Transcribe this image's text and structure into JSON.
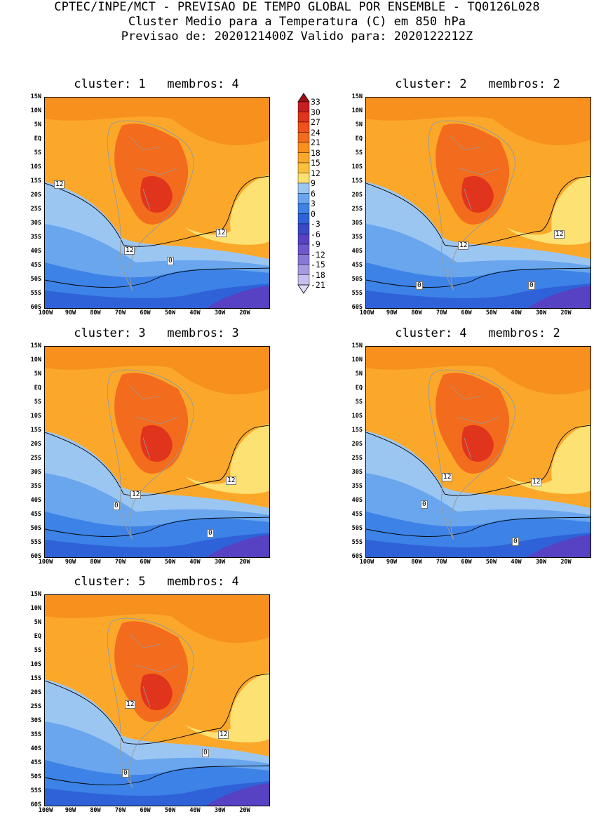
{
  "header": {
    "line1": "CPTEC/INPE/MCT - PREVISAO DE TEMPO GLOBAL POR ENSEMBLE - TQ0126L028",
    "line2": "Cluster Medio para a Temperatura (C) em 850 hPa",
    "line3": "Previsao de: 2020121400Z   Valido para: 2020122212Z"
  },
  "axes": {
    "lat_labels": [
      "15N",
      "10N",
      "5N",
      "EQ",
      "5S",
      "10S",
      "15S",
      "20S",
      "25S",
      "30S",
      "35S",
      "40S",
      "45S",
      "50S",
      "55S",
      "60S"
    ],
    "lon_labels": [
      "100W",
      "90W",
      "80W",
      "70W",
      "60W",
      "50W",
      "40W",
      "30W",
      "20W"
    ],
    "lat_range": [
      -60,
      15
    ],
    "lon_range": [
      -100,
      -10
    ]
  },
  "colorbar": {
    "labels": [
      "33",
      "30",
      "27",
      "24",
      "21",
      "18",
      "15",
      "12",
      "9",
      "6",
      "3",
      "0",
      "-3",
      "-6",
      "-9",
      "-12",
      "-15",
      "-18",
      "-21"
    ],
    "colors": [
      "#9e0e12",
      "#c51f22",
      "#e0341c",
      "#f0521a",
      "#f36b1d",
      "#f7901d",
      "#fba82a",
      "#fcc13c",
      "#fde273",
      "#9cc6f2",
      "#69a6ed",
      "#3d82e6",
      "#2f62d9",
      "#3a49c8",
      "#5642c2",
      "#6f58cc",
      "#8a78d8",
      "#a899e3",
      "#c9bfee",
      "#e2dbf5"
    ]
  },
  "clusters": [
    {
      "title": "cluster: 1   membros: 4",
      "contour_labels": [
        "12",
        "12",
        "12",
        "0"
      ]
    },
    {
      "title": "cluster: 2   membros: 2",
      "contour_labels": [
        "12",
        "12",
        "0",
        "0"
      ]
    },
    {
      "title": "cluster: 3   membros: 3",
      "contour_labels": [
        "12",
        "12",
        "0",
        "0"
      ]
    },
    {
      "title": "cluster: 4   membros: 2",
      "contour_labels": [
        "12",
        "12",
        "0",
        "0"
      ]
    },
    {
      "title": "cluster: 5   membros: 4",
      "contour_labels": [
        "12",
        "12",
        "0",
        "0"
      ]
    }
  ]
}
